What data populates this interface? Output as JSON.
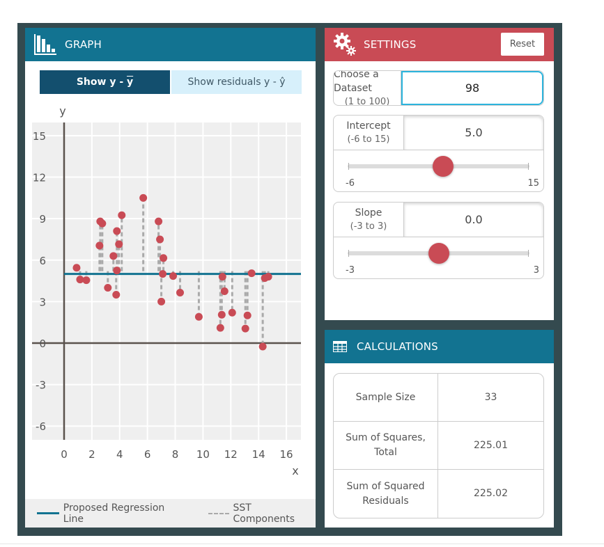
{
  "graph_panel": {
    "title": "GRAPH",
    "icon": "bar-chart-icon",
    "toggles": [
      {
        "label_prefix": "Show y - ",
        "label_symbol": "y",
        "active": true
      },
      {
        "label": "Show residuals y - ŷ",
        "active": false
      }
    ],
    "legend": {
      "line_label": "Proposed Regression Line",
      "dash_label": "SST Components"
    }
  },
  "settings_panel": {
    "title": "SETTINGS",
    "icon": "gears-icon",
    "reset_label": "Reset",
    "dataset": {
      "label": "Choose a Dataset",
      "range": "(1 to 100)",
      "value": "98"
    },
    "intercept": {
      "label": "Intercept",
      "range": "(-6 to 15)",
      "value": "5.0",
      "min": "-6",
      "max": "15",
      "min_num": -6,
      "max_num": 15,
      "current": 5.0
    },
    "slope": {
      "label": "Slope",
      "range": "(-3 to 3)",
      "value": "0.0",
      "min": "-3",
      "max": "3",
      "min_num": -3,
      "max_num": 3,
      "current": 0.0
    }
  },
  "calculations_panel": {
    "title": "CALCULATIONS",
    "icon": "table-icon",
    "rows": [
      {
        "label": "Sample Size",
        "value": "33"
      },
      {
        "label": "Sum of Squares, Total",
        "value": "225.01"
      },
      {
        "label": "Sum of Squared Residuals",
        "value": "225.02"
      }
    ]
  },
  "colors": {
    "graph_header": "#127391",
    "settings_header": "#c94b55",
    "point": "#c94b55",
    "regression_line": "#127391",
    "sst_dash": "#aaaaaa",
    "frame": "#344a4f"
  },
  "chart_data": {
    "type": "scatter",
    "title": "",
    "xlabel": "x",
    "ylabel": "y",
    "xlim": [
      -2.3,
      17
    ],
    "ylim": [
      -7,
      16
    ],
    "x_ticks": [
      0,
      2,
      4,
      6,
      8,
      10,
      12,
      14,
      16
    ],
    "y_ticks": [
      -6,
      -3,
      0,
      3,
      6,
      9,
      12,
      15
    ],
    "grid": true,
    "regression_line": {
      "intercept": 5.0,
      "slope": 0.0
    },
    "mean_y": 5.2,
    "series": [
      {
        "name": "data",
        "points": [
          [
            0.9,
            5.45
          ],
          [
            1.15,
            4.6
          ],
          [
            1.6,
            4.55
          ],
          [
            2.6,
            8.8
          ],
          [
            2.75,
            8.65
          ],
          [
            2.55,
            7.05
          ],
          [
            3.15,
            4.0
          ],
          [
            3.55,
            6.3
          ],
          [
            3.8,
            8.1
          ],
          [
            3.95,
            7.15
          ],
          [
            3.8,
            5.25
          ],
          [
            3.75,
            3.5
          ],
          [
            4.15,
            9.25
          ],
          [
            5.7,
            10.5
          ],
          [
            6.8,
            8.8
          ],
          [
            6.9,
            7.5
          ],
          [
            7.15,
            6.15
          ],
          [
            7.1,
            5.0
          ],
          [
            7.0,
            3.0
          ],
          [
            7.85,
            4.85
          ],
          [
            8.35,
            3.65
          ],
          [
            9.7,
            1.9
          ],
          [
            11.4,
            4.8
          ],
          [
            11.55,
            3.75
          ],
          [
            11.35,
            2.05
          ],
          [
            11.25,
            1.1
          ],
          [
            12.1,
            2.2
          ],
          [
            13.2,
            2.0
          ],
          [
            13.05,
            1.05
          ],
          [
            13.5,
            5.05
          ],
          [
            14.45,
            4.7
          ],
          [
            14.7,
            4.8
          ],
          [
            14.3,
            -0.25
          ]
        ]
      }
    ],
    "legend": [
      "Proposed Regression Line",
      "SST Components"
    ],
    "legend_position": "bottom"
  }
}
